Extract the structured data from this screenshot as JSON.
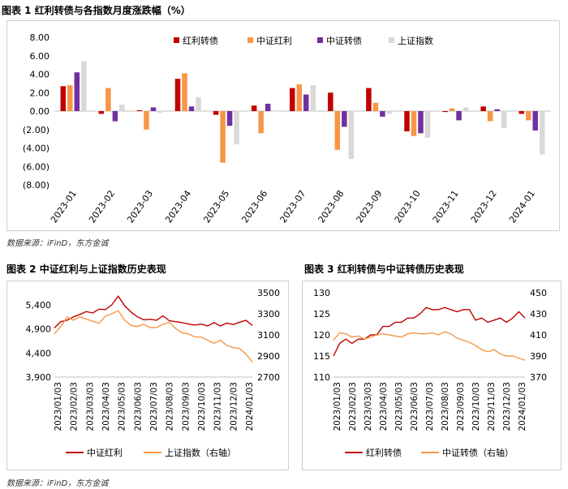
{
  "chart1": {
    "title": "图表 1  红利转债与各指数月度涨跌幅（%）",
    "chart_data": {
      "type": "bar",
      "categories": [
        "2023-01",
        "2023-02",
        "2023-03",
        "2023-04",
        "2023-05",
        "2023-06",
        "2023-07",
        "2023-08",
        "2023-09",
        "2023-10",
        "2023-11",
        "2023-12",
        "2024-01"
      ],
      "y_ticks": [
        "8.00",
        "6.00",
        "4.00",
        "2.00",
        "0.00",
        "(2.00)",
        "(4.00)",
        "(6.00)",
        "(8.00)"
      ],
      "ylim": [
        -8,
        8
      ],
      "legend_position": "top",
      "series": [
        {
          "name": "红利转债",
          "color": "#C00000",
          "values": [
            2.7,
            -0.3,
            0.1,
            3.5,
            -0.4,
            0.6,
            2.5,
            2.0,
            2.5,
            -2.2,
            -0.1,
            0.5,
            -0.3
          ]
        },
        {
          "name": "中证红利",
          "color": "#F79646",
          "values": [
            2.8,
            2.5,
            -2.0,
            4.1,
            -5.6,
            -2.4,
            2.9,
            -4.2,
            0.9,
            -2.7,
            0.3,
            -1.1,
            -1.0
          ]
        },
        {
          "name": "中证转债",
          "color": "#7030A0",
          "values": [
            4.2,
            -1.1,
            0.4,
            0.5,
            -1.6,
            0.8,
            1.8,
            -1.7,
            -0.6,
            -2.4,
            -1.0,
            0.2,
            -2.1
          ]
        },
        {
          "name": "上证指数",
          "color": "#D9D9D9",
          "values": [
            5.4,
            0.7,
            -0.2,
            1.5,
            -3.6,
            0.0,
            2.8,
            -5.2,
            -0.3,
            -2.9,
            0.4,
            -1.8,
            -4.7
          ]
        }
      ]
    }
  },
  "source1": "数据来源：iFinD，东方金诚",
  "chart2": {
    "title": "图表 2  中证红利与上证指数历史表现",
    "chart_data": {
      "type": "line",
      "x_ticks": [
        "2023/01/03",
        "2023/02/03",
        "2023/03/03",
        "2023/04/03",
        "2023/05/03",
        "2023/06/03",
        "2023/07/03",
        "2023/08/03",
        "2023/09/03",
        "2023/10/03",
        "2023/11/03",
        "2023/12/03",
        "2024/01/03"
      ],
      "y_left_ticks": [
        "5,400",
        "4,900",
        "4,400",
        "3,900"
      ],
      "y_right_ticks": [
        "3500",
        "3300",
        "3100",
        "2900",
        "2700"
      ],
      "y_left_range": [
        3900,
        5650
      ],
      "y_right_range": [
        2700,
        3500
      ],
      "series": [
        {
          "name": "中证红利",
          "axis": "left",
          "color": "#C00000",
          "values": [
            4920,
            5050,
            5080,
            5150,
            5200,
            5260,
            5230,
            5310,
            5300,
            5400,
            5580,
            5380,
            5250,
            5150,
            5090,
            5100,
            5080,
            5170,
            5070,
            5050,
            5030,
            5000,
            4980,
            5000,
            4960,
            5030,
            4960,
            5020,
            4990,
            5040,
            5080,
            4970
          ]
        },
        {
          "name": "上证指数（右轴）",
          "axis": "right",
          "color": "#F79646",
          "values": [
            3110,
            3180,
            3270,
            3240,
            3270,
            3250,
            3230,
            3210,
            3280,
            3300,
            3330,
            3240,
            3190,
            3180,
            3200,
            3170,
            3170,
            3200,
            3220,
            3160,
            3120,
            3110,
            3080,
            3080,
            3050,
            3020,
            3050,
            3000,
            2980,
            2970,
            2920,
            2840
          ]
        }
      ]
    }
  },
  "chart3": {
    "title": "图表 3  红利转债与中证转债历史表现",
    "chart_data": {
      "type": "line",
      "x_ticks": [
        "2023/01/03",
        "2023/02/03",
        "2023/03/03",
        "2023/04/03",
        "2023/05/03",
        "2023/06/03",
        "2023/07/03",
        "2023/08/03",
        "2023/09/03",
        "2023/10/03",
        "2023/11/03",
        "2023/12/03",
        "2024/01/03"
      ],
      "y_left_ticks": [
        "130",
        "125",
        "120",
        "115",
        "110"
      ],
      "y_right_ticks": [
        "450",
        "430",
        "410",
        "390",
        "370"
      ],
      "y_left_range": [
        110,
        130
      ],
      "y_right_range": [
        370,
        450
      ],
      "series": [
        {
          "name": "红利转债",
          "axis": "left",
          "color": "#C00000",
          "values": [
            115,
            118,
            119,
            118,
            119,
            119,
            120,
            120,
            122,
            122,
            123,
            123,
            124,
            124,
            125,
            126.5,
            126,
            126,
            126.5,
            126,
            125.5,
            126,
            126,
            123.5,
            124,
            123,
            123.5,
            124,
            123,
            124,
            125.5,
            124
          ]
        },
        {
          "name": "中证转债（右轴）",
          "axis": "right",
          "color": "#F79646",
          "values": [
            405,
            412,
            411,
            408,
            409,
            406,
            408,
            410,
            411,
            410,
            409,
            408,
            411,
            412,
            411,
            411,
            412,
            410,
            413,
            411,
            407,
            405,
            403,
            400,
            396,
            394,
            396,
            392,
            390,
            390,
            388,
            386
          ]
        }
      ]
    }
  },
  "source2": "数据来源：iFinD，东方金诚"
}
